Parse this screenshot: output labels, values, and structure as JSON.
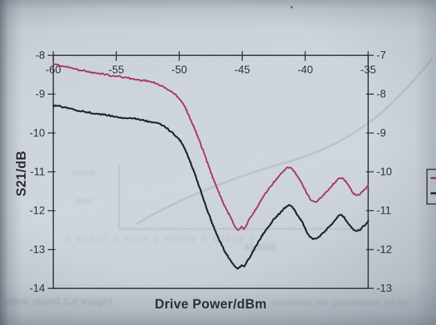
{
  "page": {
    "description": "Photograph of a printed page showing a measured S-parameter chart",
    "paper_color": "#d1d8df"
  },
  "chart_data": {
    "type": "line",
    "title": "",
    "xlabel": "Drive Power/dBm",
    "ylabel": "S21/dB",
    "xlim": [
      -60,
      -35
    ],
    "x_ticks": [
      -60,
      -55,
      -50,
      -45,
      -40,
      -35
    ],
    "x_tick_position": "top",
    "left_axis": {
      "lim": [
        -8,
        -14
      ],
      "ticks": [
        -8,
        -9,
        -10,
        -11,
        -12,
        -13,
        -14
      ]
    },
    "right_axis": {
      "lim": [
        -7,
        -13
      ],
      "ticks": [
        -7,
        -8,
        -9,
        -10,
        -11,
        -12,
        -13
      ]
    },
    "grid": false,
    "frame": true,
    "legend": {
      "position": "outside-right, clipped by photo edge",
      "entries": [
        {
          "label": "",
          "color": "#ad2f6f"
        },
        {
          "label": "",
          "color": "#1a1a22"
        }
      ]
    },
    "series": [
      {
        "name": "upper-pink-curve",
        "color": "#ad2f6f",
        "axis": "left",
        "points": [
          [
            -60,
            -8.22
          ],
          [
            -59,
            -8.3
          ],
          [
            -58,
            -8.36
          ],
          [
            -57,
            -8.43
          ],
          [
            -56,
            -8.49
          ],
          [
            -55,
            -8.54
          ],
          [
            -54,
            -8.59
          ],
          [
            -53,
            -8.64
          ],
          [
            -52.5,
            -8.67
          ],
          [
            -52,
            -8.72
          ],
          [
            -51.5,
            -8.78
          ],
          [
            -51,
            -8.86
          ],
          [
            -50.5,
            -8.97
          ],
          [
            -50,
            -9.12
          ],
          [
            -49.5,
            -9.37
          ],
          [
            -49,
            -9.72
          ],
          [
            -48.5,
            -10.12
          ],
          [
            -48,
            -10.55
          ],
          [
            -47.5,
            -11
          ],
          [
            -47,
            -11.42
          ],
          [
            -46.5,
            -11.8
          ],
          [
            -46,
            -12.12
          ],
          [
            -45.6,
            -12.38
          ],
          [
            -45.3,
            -12.5
          ],
          [
            -45.05,
            -12.41
          ],
          [
            -44.85,
            -12.47
          ],
          [
            -44.6,
            -12.32
          ],
          [
            -44.2,
            -12.12
          ],
          [
            -43.8,
            -11.9
          ],
          [
            -43.4,
            -11.68
          ],
          [
            -43,
            -11.49
          ],
          [
            -42.5,
            -11.27
          ],
          [
            -42,
            -11.09
          ],
          [
            -41.6,
            -10.95
          ],
          [
            -41.3,
            -10.88
          ],
          [
            -41,
            -10.94
          ],
          [
            -40.6,
            -11.12
          ],
          [
            -40.2,
            -11.34
          ],
          [
            -39.8,
            -11.6
          ],
          [
            -39.5,
            -11.73
          ],
          [
            -39.2,
            -11.77
          ],
          [
            -38.9,
            -11.71
          ],
          [
            -38.5,
            -11.57
          ],
          [
            -38,
            -11.41
          ],
          [
            -37.6,
            -11.26
          ],
          [
            -37.2,
            -11.14
          ],
          [
            -36.9,
            -11.19
          ],
          [
            -36.5,
            -11.38
          ],
          [
            -36.1,
            -11.57
          ],
          [
            -35.8,
            -11.6
          ],
          [
            -35.4,
            -11.49
          ],
          [
            -35,
            -11.34
          ]
        ]
      },
      {
        "name": "lower-black-curve",
        "color": "#1a1a22",
        "axis": "left",
        "points": [
          [
            -60,
            -9.28
          ],
          [
            -59,
            -9.35
          ],
          [
            -58,
            -9.42
          ],
          [
            -57,
            -9.48
          ],
          [
            -56,
            -9.53
          ],
          [
            -55,
            -9.58
          ],
          [
            -54,
            -9.62
          ],
          [
            -53,
            -9.66
          ],
          [
            -52.5,
            -9.69
          ],
          [
            -52,
            -9.73
          ],
          [
            -51.5,
            -9.79
          ],
          [
            -51,
            -9.88
          ],
          [
            -50.5,
            -10
          ],
          [
            -50,
            -10.16
          ],
          [
            -49.5,
            -10.45
          ],
          [
            -49,
            -10.85
          ],
          [
            -48.5,
            -11.3
          ],
          [
            -48,
            -11.78
          ],
          [
            -47.5,
            -12.22
          ],
          [
            -47,
            -12.62
          ],
          [
            -46.5,
            -12.97
          ],
          [
            -46,
            -13.25
          ],
          [
            -45.6,
            -13.42
          ],
          [
            -45.3,
            -13.5
          ],
          [
            -45.05,
            -13.39
          ],
          [
            -44.85,
            -13.45
          ],
          [
            -44.6,
            -13.3
          ],
          [
            -44.2,
            -13.08
          ],
          [
            -43.8,
            -12.86
          ],
          [
            -43.4,
            -12.64
          ],
          [
            -43,
            -12.45
          ],
          [
            -42.5,
            -12.24
          ],
          [
            -42,
            -12.06
          ],
          [
            -41.6,
            -11.92
          ],
          [
            -41.3,
            -11.86
          ],
          [
            -41,
            -11.93
          ],
          [
            -40.6,
            -12.12
          ],
          [
            -40.2,
            -12.32
          ],
          [
            -39.8,
            -12.58
          ],
          [
            -39.5,
            -12.7
          ],
          [
            -39.2,
            -12.74
          ],
          [
            -38.9,
            -12.68
          ],
          [
            -38.5,
            -12.55
          ],
          [
            -38,
            -12.39
          ],
          [
            -37.6,
            -12.22
          ],
          [
            -37.2,
            -12.1
          ],
          [
            -36.9,
            -12.17
          ],
          [
            -36.5,
            -12.35
          ],
          [
            -36.1,
            -12.51
          ],
          [
            -35.8,
            -12.53
          ],
          [
            -35.4,
            -12.41
          ],
          [
            -35,
            -12.28
          ]
        ]
      }
    ]
  },
  "ghost_showthrough": {
    "note": "faint mirrored print from reverse side of the page (illegible)",
    "axis_number_1": "60000",
    "axis_number_2": "2000",
    "numbers_row": "0 60000 0 40000 8 0000 0 20000 0",
    "axis_title": "Drive/A",
    "caption_left": "Figure 5.2 Diode Volta",
    "caption_right": "ed by measuring the variation"
  }
}
